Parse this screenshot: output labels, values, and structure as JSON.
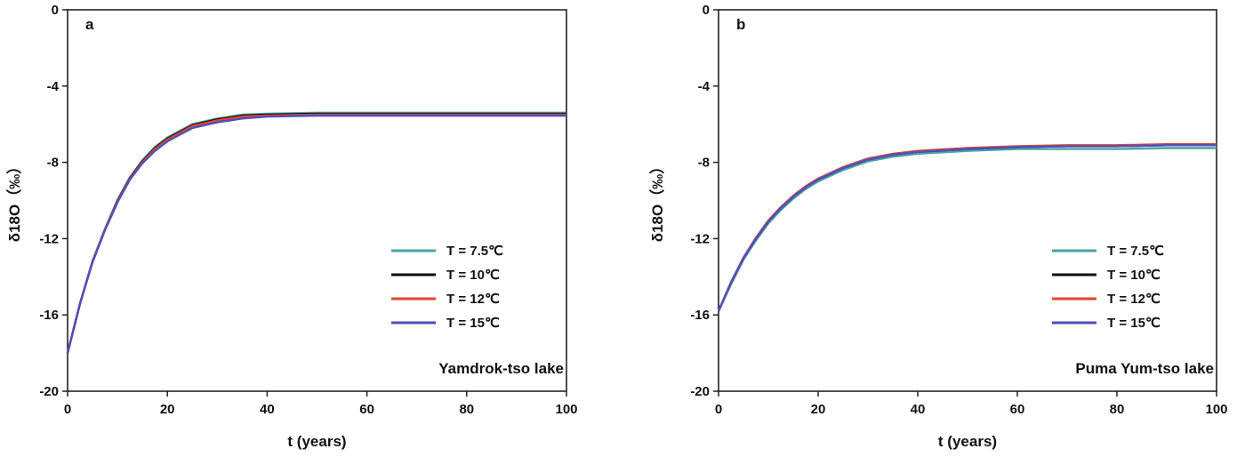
{
  "chart_data": [
    {
      "type": "line",
      "panel": "a",
      "annotation": "Yamdrok-tso lake",
      "xlabel": "t (years)",
      "ylabel": "δ18O（‰）",
      "xlim": [
        0,
        100
      ],
      "ylim": [
        -20,
        0
      ],
      "xticks": [
        0,
        20,
        40,
        60,
        80,
        100
      ],
      "yticks": [
        0,
        -4,
        -8,
        -12,
        -16,
        -20
      ],
      "legend_position": "lower-right",
      "x": [
        0,
        2.5,
        5,
        7.5,
        10,
        12.5,
        15,
        17.5,
        20,
        25,
        30,
        35,
        40,
        50,
        60,
        70,
        80,
        90,
        100
      ],
      "series": [
        {
          "name": "T = 7.5℃",
          "color": "#4aa3a3",
          "values": [
            -18.0,
            -15.4,
            -13.2,
            -11.5,
            -10.0,
            -8.8,
            -7.9,
            -7.2,
            -6.7,
            -6.0,
            -5.7,
            -5.5,
            -5.45,
            -5.4,
            -5.4,
            -5.4,
            -5.4,
            -5.4,
            -5.4
          ]
        },
        {
          "name": "T = 10℃",
          "color": "#111111",
          "values": [
            -18.0,
            -15.4,
            -13.2,
            -11.5,
            -10.0,
            -8.8,
            -7.95,
            -7.25,
            -6.75,
            -6.05,
            -5.75,
            -5.55,
            -5.5,
            -5.45,
            -5.45,
            -5.45,
            -5.45,
            -5.45,
            -5.45
          ]
        },
        {
          "name": "T = 12℃",
          "color": "#e5432b",
          "values": [
            -18.0,
            -15.4,
            -13.2,
            -11.5,
            -10.05,
            -8.85,
            -8.0,
            -7.3,
            -6.8,
            -6.1,
            -5.8,
            -5.6,
            -5.55,
            -5.5,
            -5.5,
            -5.5,
            -5.5,
            -5.5,
            -5.5
          ]
        },
        {
          "name": "T = 15℃",
          "color": "#4f4fc0",
          "values": [
            -18.0,
            -15.4,
            -13.25,
            -11.55,
            -10.1,
            -8.9,
            -8.05,
            -7.4,
            -6.9,
            -6.2,
            -5.9,
            -5.7,
            -5.6,
            -5.55,
            -5.55,
            -5.55,
            -5.55,
            -5.55,
            -5.55
          ]
        }
      ]
    },
    {
      "type": "line",
      "panel": "b",
      "annotation": "Puma Yum-tso lake",
      "xlabel": "t (years)",
      "ylabel": "δ18O（‰）",
      "xlim": [
        0,
        100
      ],
      "ylim": [
        -20,
        0
      ],
      "xticks": [
        0,
        20,
        40,
        60,
        80,
        100
      ],
      "yticks": [
        0,
        -4,
        -8,
        -12,
        -16,
        -20
      ],
      "legend_position": "lower-right",
      "x": [
        0,
        2.5,
        5,
        7.5,
        10,
        12.5,
        15,
        17.5,
        20,
        25,
        30,
        35,
        40,
        50,
        60,
        70,
        80,
        90,
        100
      ],
      "series": [
        {
          "name": "T = 7.5℃",
          "color": "#4aa3a3",
          "values": [
            -15.8,
            -14.4,
            -13.1,
            -12.1,
            -11.2,
            -10.5,
            -9.9,
            -9.4,
            -9.0,
            -8.4,
            -7.95,
            -7.7,
            -7.55,
            -7.4,
            -7.3,
            -7.3,
            -7.3,
            -7.25,
            -7.25
          ]
        },
        {
          "name": "T = 10℃",
          "color": "#111111",
          "values": [
            -15.8,
            -14.3,
            -13.0,
            -12.0,
            -11.1,
            -10.4,
            -9.8,
            -9.3,
            -8.9,
            -8.3,
            -7.85,
            -7.6,
            -7.45,
            -7.3,
            -7.2,
            -7.15,
            -7.15,
            -7.1,
            -7.1
          ]
        },
        {
          "name": "T = 12℃",
          "color": "#e5432b",
          "values": [
            -15.8,
            -14.3,
            -13.0,
            -11.95,
            -11.05,
            -10.35,
            -9.75,
            -9.25,
            -8.85,
            -8.25,
            -7.8,
            -7.55,
            -7.4,
            -7.25,
            -7.15,
            -7.1,
            -7.1,
            -7.05,
            -7.05
          ]
        },
        {
          "name": "T = 15℃",
          "color": "#4f4fc0",
          "values": [
            -15.8,
            -14.3,
            -13.05,
            -12.0,
            -11.1,
            -10.4,
            -9.8,
            -9.3,
            -8.9,
            -8.3,
            -7.85,
            -7.6,
            -7.45,
            -7.3,
            -7.2,
            -7.15,
            -7.15,
            -7.1,
            -7.1
          ]
        }
      ]
    }
  ]
}
